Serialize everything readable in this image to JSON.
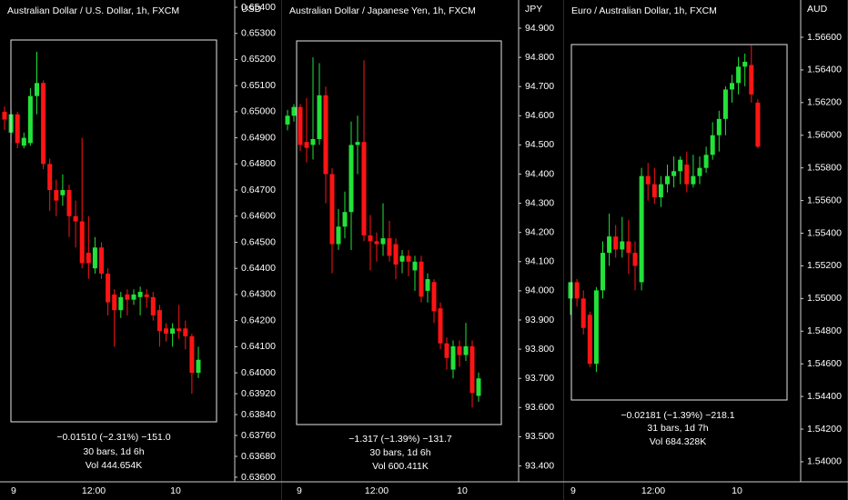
{
  "chart_data": [
    {
      "type": "candlestick",
      "title": "Australian Dollar / U.S. Dollar, 1h, FXCM",
      "y_axis_label": "USD",
      "up_color": "#22e23a",
      "down_color": "#ff1414",
      "open": [
        0.65,
        0.6492,
        0.6499,
        0.6487,
        0.6488,
        0.6506,
        0.6511,
        0.648,
        0.647,
        0.6468,
        0.647,
        0.646,
        0.6458,
        0.6446,
        0.644,
        0.6448,
        0.6438,
        0.643,
        0.6424,
        0.643,
        0.6428,
        0.6429,
        0.643,
        0.6429,
        0.6424,
        0.6417,
        0.6415,
        0.6417,
        0.6417,
        0.6414,
        0.64
      ],
      "high": [
        0.6502,
        0.6501,
        0.65,
        0.6492,
        0.6509,
        0.6523,
        0.6512,
        0.6482,
        0.6474,
        0.6476,
        0.6472,
        0.6466,
        0.649,
        0.646,
        0.6452,
        0.645,
        0.644,
        0.6432,
        0.6431,
        0.6432,
        0.6432,
        0.6433,
        0.6432,
        0.6431,
        0.6426,
        0.6419,
        0.6419,
        0.6426,
        0.642,
        0.6415,
        0.641
      ],
      "low": [
        0.6493,
        0.6488,
        0.6486,
        0.6486,
        0.6487,
        0.6499,
        0.6478,
        0.6462,
        0.646,
        0.6464,
        0.6452,
        0.6448,
        0.644,
        0.6436,
        0.6438,
        0.6436,
        0.6422,
        0.641,
        0.6421,
        0.6422,
        0.6426,
        0.6422,
        0.6425,
        0.642,
        0.641,
        0.6412,
        0.641,
        0.6413,
        0.6409,
        0.6392,
        0.6398
      ],
      "close": [
        0.6497,
        0.6499,
        0.6488,
        0.649,
        0.6506,
        0.6511,
        0.648,
        0.647,
        0.6466,
        0.647,
        0.646,
        0.6458,
        0.6442,
        0.6442,
        0.6448,
        0.6438,
        0.6427,
        0.6424,
        0.6429,
        0.6428,
        0.643,
        0.6431,
        0.6429,
        0.6422,
        0.6416,
        0.6415,
        0.6417,
        0.6416,
        0.6414,
        0.64,
        0.6405
      ],
      "ylim": [
        0.635825,
        0.654279
      ],
      "yticks": [
        {
          "value": 0.654,
          "label": "0.65400"
        },
        {
          "value": 0.653,
          "label": "0.65300"
        },
        {
          "value": 0.652,
          "label": "0.65200"
        },
        {
          "value": 0.651,
          "label": "0.65100"
        },
        {
          "value": 0.65,
          "label": "0.65000"
        },
        {
          "value": 0.649,
          "label": "0.64900"
        },
        {
          "value": 0.648,
          "label": "0.64800"
        },
        {
          "value": 0.647,
          "label": "0.64700"
        },
        {
          "value": 0.646,
          "label": "0.64600"
        },
        {
          "value": 0.645,
          "label": "0.64500"
        },
        {
          "value": 0.644,
          "label": "0.64400"
        },
        {
          "value": 0.643,
          "label": "0.64300"
        },
        {
          "value": 0.642,
          "label": "0.64200"
        },
        {
          "value": 0.641,
          "label": "0.64100"
        },
        {
          "value": 0.64,
          "label": "0.64000"
        },
        {
          "value": 0.6392,
          "label": "0.63920"
        },
        {
          "value": 0.6384,
          "label": "0.63840"
        },
        {
          "value": 0.6376,
          "label": "0.63760"
        },
        {
          "value": 0.6368,
          "label": "0.63680"
        },
        {
          "value": 0.636,
          "label": "0.63600"
        }
      ],
      "x_labels": [
        "9",
        "12:00",
        "10"
      ],
      "stats": [
        "−0.01510 (−2.31%) −151.0",
        "30 bars, 1d 6h",
        "Vol 444.654K"
      ]
    },
    {
      "type": "candlestick",
      "title": "Australian Dollar / Japanese Yen, 1h, FXCM",
      "y_axis_label": "JPY",
      "up_color": "#22e23a",
      "down_color": "#ff1414",
      "open": [
        94.57,
        94.6,
        94.63,
        94.51,
        94.5,
        94.52,
        94.67,
        94.4,
        94.16,
        94.22,
        94.27,
        94.5,
        94.51,
        94.19,
        94.17,
        94.16,
        94.18,
        94.16,
        94.1,
        94.12,
        94.07,
        94.1,
        94.0,
        94.03,
        93.94,
        93.82,
        93.73,
        93.81,
        93.78,
        93.81,
        93.64
      ],
      "high": [
        94.62,
        94.64,
        94.64,
        94.66,
        94.8,
        94.78,
        94.7,
        94.42,
        94.28,
        94.34,
        94.58,
        94.6,
        94.79,
        94.26,
        94.2,
        94.3,
        94.24,
        94.18,
        94.14,
        94.14,
        94.12,
        94.12,
        94.06,
        94.04,
        93.96,
        93.84,
        93.83,
        93.83,
        93.89,
        93.83,
        93.72
      ],
      "low": [
        94.55,
        94.58,
        94.48,
        94.44,
        94.45,
        94.5,
        94.3,
        94.06,
        94.14,
        94.18,
        94.14,
        94.4,
        94.17,
        94.07,
        94.1,
        94.12,
        94.1,
        94.04,
        94.06,
        94.05,
        94.0,
        93.96,
        93.96,
        93.89,
        93.8,
        93.73,
        93.7,
        93.74,
        93.76,
        93.6,
        93.62
      ],
      "close": [
        94.6,
        94.63,
        94.5,
        94.49,
        94.52,
        94.67,
        94.4,
        94.16,
        94.22,
        94.27,
        94.5,
        94.51,
        94.19,
        94.17,
        94.16,
        94.18,
        94.12,
        94.09,
        94.12,
        94.1,
        94.1,
        93.98,
        94.04,
        93.93,
        93.82,
        93.77,
        93.81,
        93.78,
        93.81,
        93.65,
        93.7
      ],
      "ylim": [
        93.3455,
        94.9966
      ],
      "yticks": [
        {
          "value": 94.9,
          "label": "94.900"
        },
        {
          "value": 94.8,
          "label": "94.800"
        },
        {
          "value": 94.7,
          "label": "94.700"
        },
        {
          "value": 94.6,
          "label": "94.600"
        },
        {
          "value": 94.5,
          "label": "94.500"
        },
        {
          "value": 94.4,
          "label": "94.400"
        },
        {
          "value": 94.3,
          "label": "94.300"
        },
        {
          "value": 94.2,
          "label": "94.200"
        },
        {
          "value": 94.1,
          "label": "94.100"
        },
        {
          "value": 94.0,
          "label": "94.000"
        },
        {
          "value": 93.9,
          "label": "93.900"
        },
        {
          "value": 93.8,
          "label": "93.800"
        },
        {
          "value": 93.7,
          "label": "93.700"
        },
        {
          "value": 93.6,
          "label": "93.600"
        },
        {
          "value": 93.5,
          "label": "93.500"
        },
        {
          "value": 93.4,
          "label": "93.400"
        }
      ],
      "x_labels": [
        "9",
        "12:00",
        "10"
      ],
      "stats": [
        "−1.317 (−1.39%) −131.7",
        "30 bars, 1d 6h",
        "Vol 600.411K"
      ]
    },
    {
      "type": "candlestick",
      "title": "Euro / Australian Dollar, 1h, FXCM",
      "y_axis_label": "AUD",
      "up_color": "#22e23a",
      "down_color": "#ff1414",
      "open": [
        1.55,
        1.551,
        1.55,
        1.549,
        1.546,
        1.5505,
        1.5528,
        1.5538,
        1.553,
        1.5535,
        1.5528,
        1.551,
        1.5575,
        1.557,
        1.5562,
        1.557,
        1.5575,
        1.5578,
        1.5582,
        1.557,
        1.5575,
        1.558,
        1.5588,
        1.56,
        1.561,
        1.5628,
        1.5632,
        1.5642,
        1.5643,
        1.562
      ],
      "high": [
        1.551,
        1.5512,
        1.5505,
        1.5492,
        1.5507,
        1.5535,
        1.5552,
        1.5545,
        1.555,
        1.5548,
        1.5535,
        1.558,
        1.5583,
        1.558,
        1.5575,
        1.5582,
        1.5587,
        1.5587,
        1.559,
        1.5588,
        1.5587,
        1.5593,
        1.5608,
        1.5615,
        1.563,
        1.5637,
        1.5648,
        1.565,
        1.5655,
        1.5622
      ],
      "low": [
        1.549,
        1.5495,
        1.5478,
        1.5458,
        1.5455,
        1.55,
        1.552,
        1.5525,
        1.5525,
        1.5515,
        1.5505,
        1.5505,
        1.556,
        1.5558,
        1.5556,
        1.5565,
        1.5568,
        1.557,
        1.5565,
        1.5568,
        1.557,
        1.5577,
        1.5585,
        1.559,
        1.56,
        1.562,
        1.5625,
        1.563,
        1.562,
        1.5592
      ],
      "close": [
        1.551,
        1.55,
        1.5482,
        1.546,
        1.5505,
        1.5528,
        1.5538,
        1.553,
        1.5535,
        1.5528,
        1.552,
        1.5575,
        1.557,
        1.5562,
        1.557,
        1.5575,
        1.5578,
        1.5585,
        1.557,
        1.5575,
        1.558,
        1.5588,
        1.56,
        1.561,
        1.5628,
        1.5632,
        1.5642,
        1.5645,
        1.5625,
        1.5593
      ],
      "ylim": [
        1.538773,
        1.568283
      ],
      "yticks": [
        {
          "value": 1.566,
          "label": "1.56600"
        },
        {
          "value": 1.564,
          "label": "1.56400"
        },
        {
          "value": 1.562,
          "label": "1.56200"
        },
        {
          "value": 1.56,
          "label": "1.56000"
        },
        {
          "value": 1.558,
          "label": "1.55800"
        },
        {
          "value": 1.556,
          "label": "1.55600"
        },
        {
          "value": 1.554,
          "label": "1.55400"
        },
        {
          "value": 1.552,
          "label": "1.55200"
        },
        {
          "value": 1.55,
          "label": "1.55000"
        },
        {
          "value": 1.548,
          "label": "1.54800"
        },
        {
          "value": 1.546,
          "label": "1.54600"
        },
        {
          "value": 1.544,
          "label": "1.54400"
        },
        {
          "value": 1.542,
          "label": "1.54200"
        },
        {
          "value": 1.54,
          "label": "1.54000"
        }
      ],
      "x_labels": [
        "9",
        "12:00",
        "10"
      ],
      "stats": [
        "−0.02181 (−1.39%) −218.1",
        "31 bars, 1d 7h",
        "Vol 684.328K"
      ]
    }
  ]
}
